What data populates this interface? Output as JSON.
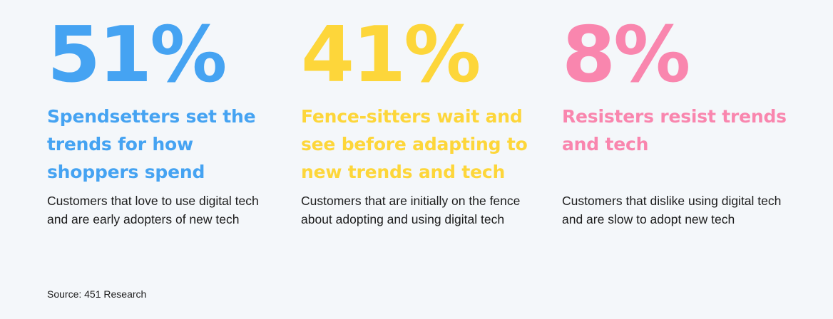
{
  "chart_data": {
    "type": "stat-cards",
    "stats": [
      {
        "value": 51,
        "percent": "51%",
        "headline": "Spendsetters set the trends for how shoppers spend",
        "description": "Customers that love to use digital tech and are early adopters of new tech",
        "color": "#45a3f2"
      },
      {
        "value": 41,
        "percent": "41%",
        "headline": "Fence-sitters wait and see before adapting to new trends and tech",
        "description": "Customers that are initially on the fence about adopting and using digital tech",
        "color": "#fdd63a"
      },
      {
        "value": 8,
        "percent": "8%",
        "headline": "Resisters resist trends and tech",
        "description": "Customers that dislike using digital tech and are slow to adopt new tech",
        "color": "#f986ae"
      }
    ],
    "source": "Source: 451 Research"
  }
}
